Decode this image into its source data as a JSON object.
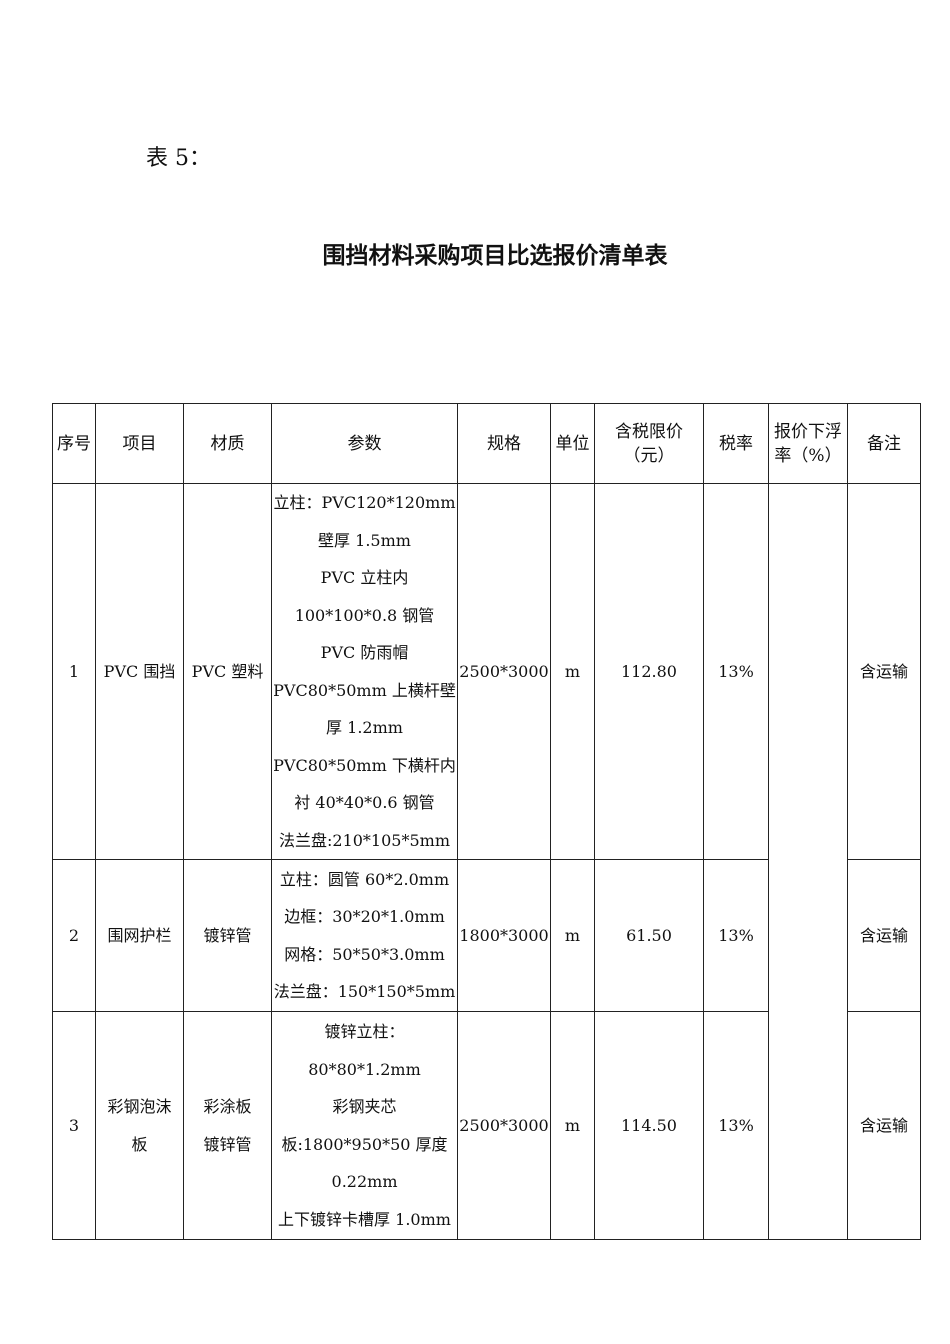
{
  "header": {
    "label": "表 5：",
    "title": "围挡材料采购项目比选报价清单表"
  },
  "table": {
    "columns": [
      [
        "序号"
      ],
      [
        "项目"
      ],
      [
        "材质"
      ],
      [
        "参数"
      ],
      [
        "规格"
      ],
      [
        "单位"
      ],
      [
        "含税限价",
        "（元）"
      ],
      [
        "税率"
      ],
      [
        "报价下浮",
        "率（%）"
      ],
      [
        "备注"
      ]
    ],
    "rows": [
      {
        "no": "1",
        "item": [
          "PVC 围挡"
        ],
        "material": [
          "PVC 塑料"
        ],
        "params": [
          "立柱：PVC120*120mm",
          "壁厚 1.5mm",
          "PVC 立柱内",
          "100*100*0.8 钢管",
          "PVC 防雨帽",
          "PVC80*50mm 上横杆壁",
          "厚 1.2mm",
          "PVC80*50mm 下横杆内",
          "衬 40*40*0.6 钢管",
          "法兰盘:210*105*5mm"
        ],
        "spec": "2500*3000",
        "unit": "m",
        "price": "112.80",
        "tax": "13%",
        "remark": "含运输"
      },
      {
        "no": "2",
        "item": [
          "围网护栏"
        ],
        "material": [
          "镀锌管"
        ],
        "params": [
          "立柱：圆管 60*2.0mm",
          "边框：30*20*1.0mm",
          "网格：50*50*3.0mm",
          "法兰盘：150*150*5mm"
        ],
        "spec": "1800*3000",
        "unit": "m",
        "price": "61.50",
        "tax": "13%",
        "remark": "含运输"
      },
      {
        "no": "3",
        "item": [
          "彩钢泡沫",
          "板"
        ],
        "material": [
          "彩涂板",
          "镀锌管"
        ],
        "params": [
          "镀锌立柱：",
          "80*80*1.2mm",
          "彩钢夹芯",
          "板:1800*950*50 厚度",
          "0.22mm",
          "上下镀锌卡槽厚 1.0mm"
        ],
        "spec": "2500*3000",
        "unit": "m",
        "price": "114.50",
        "tax": "13%",
        "remark": "含运输"
      }
    ]
  }
}
